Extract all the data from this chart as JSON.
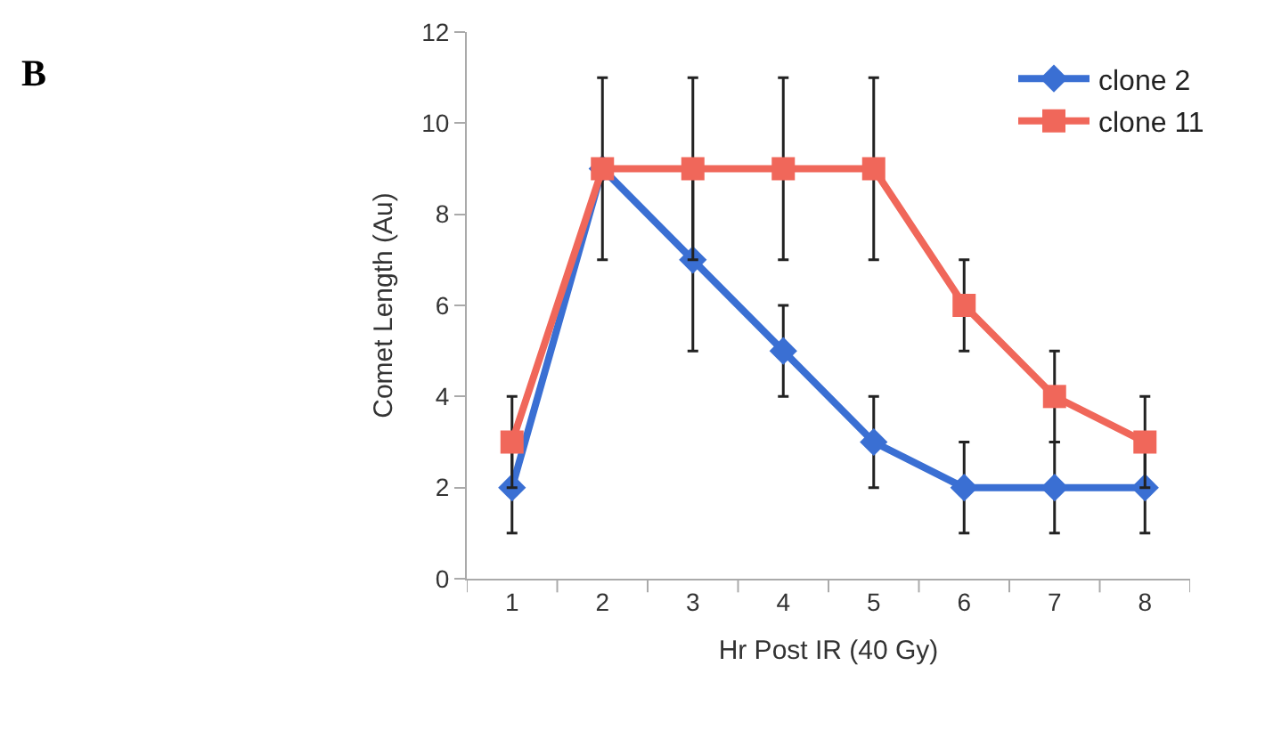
{
  "chart_data": {
    "type": "line",
    "xlabel": "Hr Post IR (40 Gy)",
    "ylabel": "Comet Length (Au)",
    "annotations": [
      "B"
    ],
    "categories": [
      "1",
      "2",
      "3",
      "4",
      "5",
      "6",
      "7",
      "8"
    ],
    "series": [
      {
        "name": "clone 2",
        "color": "#3a6fd3",
        "marker": "diamond",
        "values": [
          2,
          9,
          7,
          5,
          3,
          2,
          2,
          2
        ],
        "errors": [
          1,
          null,
          2,
          1,
          1,
          1,
          1,
          1
        ]
      },
      {
        "name": "clone 11",
        "color": "#f0675a",
        "marker": "square",
        "values": [
          3,
          9,
          9,
          9,
          9,
          6,
          4,
          3
        ],
        "errors": [
          1,
          2,
          2,
          2,
          2,
          1,
          1,
          1
        ]
      }
    ],
    "ylim": [
      0,
      12
    ],
    "yticks": [
      0,
      2,
      4,
      6,
      8,
      10,
      12
    ],
    "grid": false,
    "legend": "top right",
    "line_style": "solid"
  }
}
